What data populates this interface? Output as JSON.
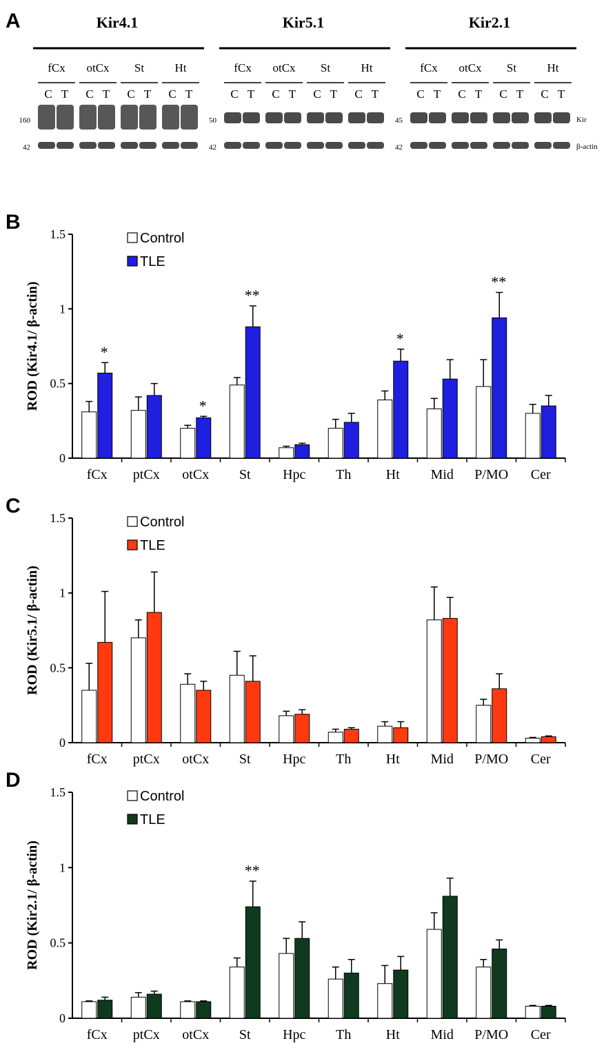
{
  "colors": {
    "control": "#ffffff",
    "kir41_tle": "#1f1fe0",
    "kir51_tle": "#ff3a10",
    "kir21_tle": "#0f3a1e",
    "axis": "#000000",
    "blot_dark": "#222222"
  },
  "panel_a": {
    "letter": "A",
    "blots": [
      {
        "title": "Kir4.1",
        "regions": [
          "fCx",
          "otCx",
          "St",
          "Ht"
        ],
        "lane_labels": [
          "C",
          "T"
        ],
        "mw_target": "160",
        "mw_actin": "42"
      },
      {
        "title": "Kir5.1",
        "regions": [
          "fCx",
          "otCx",
          "St",
          "Ht"
        ],
        "lane_labels": [
          "C",
          "T"
        ],
        "mw_target": "50",
        "mw_actin": "42"
      },
      {
        "title": "Kir2.1",
        "regions": [
          "fCx",
          "otCx",
          "St",
          "Ht"
        ],
        "lane_labels": [
          "C",
          "T"
        ],
        "mw_target": "45",
        "mw_actin": "42"
      }
    ],
    "row_label_target": "Kir",
    "row_label_actin": "β-actin"
  },
  "chart_data": [
    {
      "panel": "B",
      "type": "bar",
      "ylabel": "ROD (Kir4.1/ β-actin)",
      "ylim": [
        0,
        1.5
      ],
      "yticks": [
        "0",
        "0.5",
        "1",
        "1.5"
      ],
      "categories": [
        "fCx",
        "ptCx",
        "otCx",
        "St",
        "Hpc",
        "Th",
        "Ht",
        "Mid",
        "P/MO",
        "Cer"
      ],
      "legend": [
        "Control",
        "TLE"
      ],
      "tle_color_key": "kir41_tle",
      "series": [
        {
          "name": "Control",
          "values": [
            0.31,
            0.32,
            0.2,
            0.49,
            0.07,
            0.2,
            0.39,
            0.33,
            0.48,
            0.3
          ],
          "errors": [
            0.07,
            0.09,
            0.02,
            0.05,
            0.01,
            0.06,
            0.06,
            0.07,
            0.18,
            0.06
          ]
        },
        {
          "name": "TLE",
          "values": [
            0.57,
            0.42,
            0.27,
            0.88,
            0.09,
            0.24,
            0.65,
            0.53,
            0.94,
            0.35
          ],
          "errors": [
            0.07,
            0.08,
            0.01,
            0.14,
            0.01,
            0.06,
            0.08,
            0.13,
            0.17,
            0.07
          ]
        }
      ],
      "annotations": [
        "*",
        "",
        "*",
        "**",
        "",
        "",
        "*",
        "",
        "**",
        ""
      ]
    },
    {
      "panel": "C",
      "type": "bar",
      "ylabel": "ROD (Kir5.1/ β-actin)",
      "ylim": [
        0,
        1.5
      ],
      "yticks": [
        "0",
        "0.5",
        "1",
        "1.5"
      ],
      "categories": [
        "fCx",
        "ptCx",
        "otCx",
        "St",
        "Hpc",
        "Th",
        "Ht",
        "Mid",
        "P/MO",
        "Cer"
      ],
      "legend": [
        "Control",
        "TLE"
      ],
      "tle_color_key": "kir51_tle",
      "series": [
        {
          "name": "Control",
          "values": [
            0.35,
            0.7,
            0.39,
            0.45,
            0.18,
            0.07,
            0.11,
            0.82,
            0.25,
            0.03
          ],
          "errors": [
            0.18,
            0.12,
            0.07,
            0.16,
            0.03,
            0.02,
            0.03,
            0.22,
            0.04,
            0.005
          ]
        },
        {
          "name": "TLE",
          "values": [
            0.67,
            0.87,
            0.35,
            0.41,
            0.19,
            0.09,
            0.1,
            0.83,
            0.36,
            0.04
          ],
          "errors": [
            0.34,
            0.27,
            0.06,
            0.17,
            0.03,
            0.01,
            0.04,
            0.14,
            0.1,
            0.005
          ]
        }
      ],
      "annotations": [
        "",
        "",
        "",
        "",
        "",
        "",
        "",
        "",
        "",
        ""
      ]
    },
    {
      "panel": "D",
      "type": "bar",
      "ylabel": "ROD (Kir2.1/ β-actin)",
      "ylim": [
        0,
        1.5
      ],
      "yticks": [
        "0",
        "0.5",
        "1",
        "1.5"
      ],
      "categories": [
        "fCx",
        "ptCx",
        "otCx",
        "St",
        "Hpc",
        "Th",
        "Ht",
        "Mid",
        "P/MO",
        "Cer"
      ],
      "legend": [
        "Control",
        "TLE"
      ],
      "tle_color_key": "kir21_tle",
      "series": [
        {
          "name": "Control",
          "values": [
            0.11,
            0.14,
            0.11,
            0.34,
            0.43,
            0.26,
            0.23,
            0.59,
            0.34,
            0.08
          ],
          "errors": [
            0.005,
            0.03,
            0.005,
            0.06,
            0.1,
            0.08,
            0.12,
            0.11,
            0.05,
            0.005
          ]
        },
        {
          "name": "TLE",
          "values": [
            0.12,
            0.16,
            0.11,
            0.74,
            0.53,
            0.3,
            0.32,
            0.81,
            0.46,
            0.08
          ],
          "errors": [
            0.02,
            0.02,
            0.005,
            0.17,
            0.11,
            0.09,
            0.09,
            0.12,
            0.06,
            0.005
          ]
        }
      ],
      "annotations": [
        "",
        "",
        "",
        "**",
        "",
        "",
        "",
        "",
        "",
        ""
      ]
    }
  ]
}
